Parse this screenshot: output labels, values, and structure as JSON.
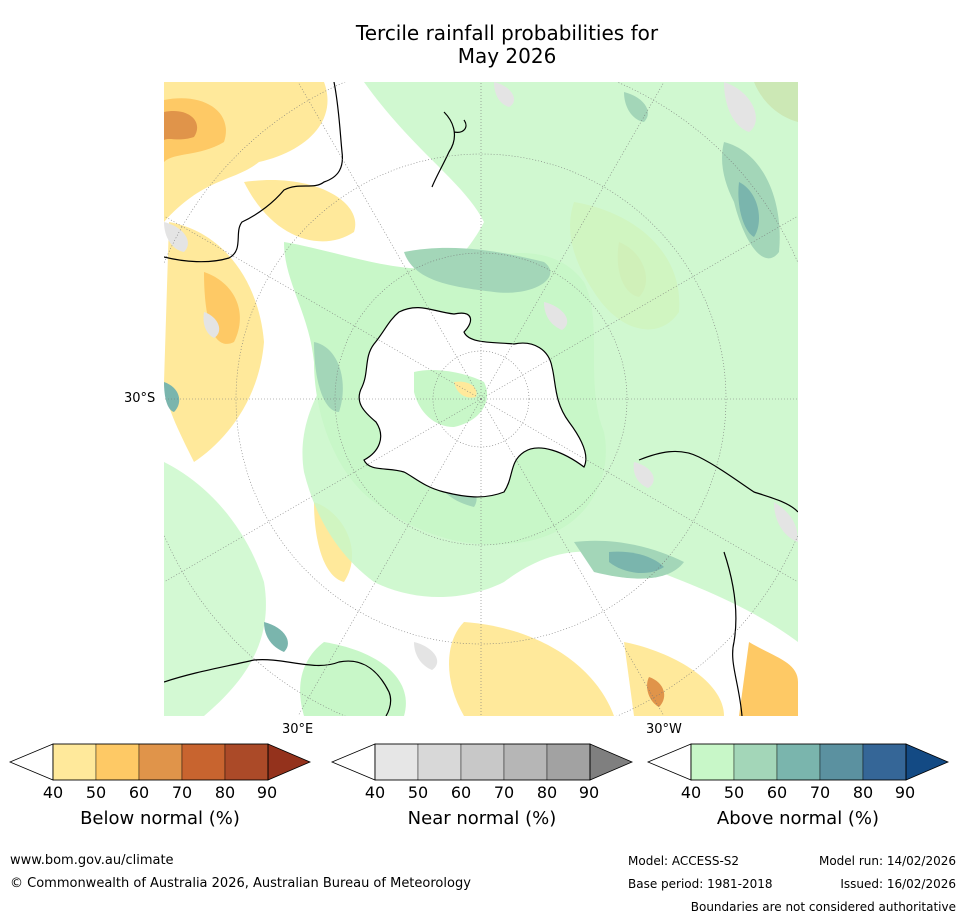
{
  "title": {
    "line1": "Tercile rainfall probabilities for",
    "line2": "May 2026"
  },
  "map": {
    "lat_labels": {
      "lat_30s": "30°S"
    },
    "lon_labels": {
      "lon_30e": "30°E",
      "lon_30w": "30°W"
    },
    "colors": {
      "ocean": "#ffffff",
      "above_40": "#c8f7c8",
      "above_50": "#a3d6b8",
      "above_60": "#7ab5ad",
      "below_40": "#ffe99b",
      "below_50": "#fec965",
      "below_60": "#e0944a",
      "near_40": "#e4e4e4",
      "coast": "#000000",
      "grid": "#777777"
    }
  },
  "colorbars": [
    {
      "label": "Below normal (%)",
      "ticks": [
        "40",
        "50",
        "60",
        "70",
        "80",
        "90"
      ],
      "colors": [
        "#ffe99b",
        "#fec965",
        "#e0944a",
        "#c8642f",
        "#ab4a28"
      ],
      "extend_low": "#ffffff",
      "extend_high": "#94321c"
    },
    {
      "label": "Near normal (%)",
      "ticks": [
        "40",
        "50",
        "60",
        "70",
        "80",
        "90"
      ],
      "colors": [
        "#e6e6e6",
        "#d8d8d8",
        "#c8c8c8",
        "#b6b6b6",
        "#a2a2a2"
      ],
      "extend_low": "#ffffff",
      "extend_high": "#7f7f7f"
    },
    {
      "label": "Above normal (%)",
      "ticks": [
        "40",
        "50",
        "60",
        "70",
        "80",
        "90"
      ],
      "colors": [
        "#c8f7c8",
        "#a3d6b8",
        "#7ab5ad",
        "#5b91a0",
        "#356697"
      ],
      "extend_low": "#ffffff",
      "extend_high": "#134a84"
    }
  ],
  "footer": {
    "website": "www.bom.gov.au/climate",
    "copyright": "© Commonwealth of Australia 2026, Australian Bureau of Meteorology",
    "model": "Model: ACCESS-S2",
    "base_period": "Base period: 1981-2018",
    "model_run": "Model run: 14/02/2026",
    "issued": "Issued: 16/02/2026",
    "disclaimer": "Boundaries are not considered authoritative"
  }
}
